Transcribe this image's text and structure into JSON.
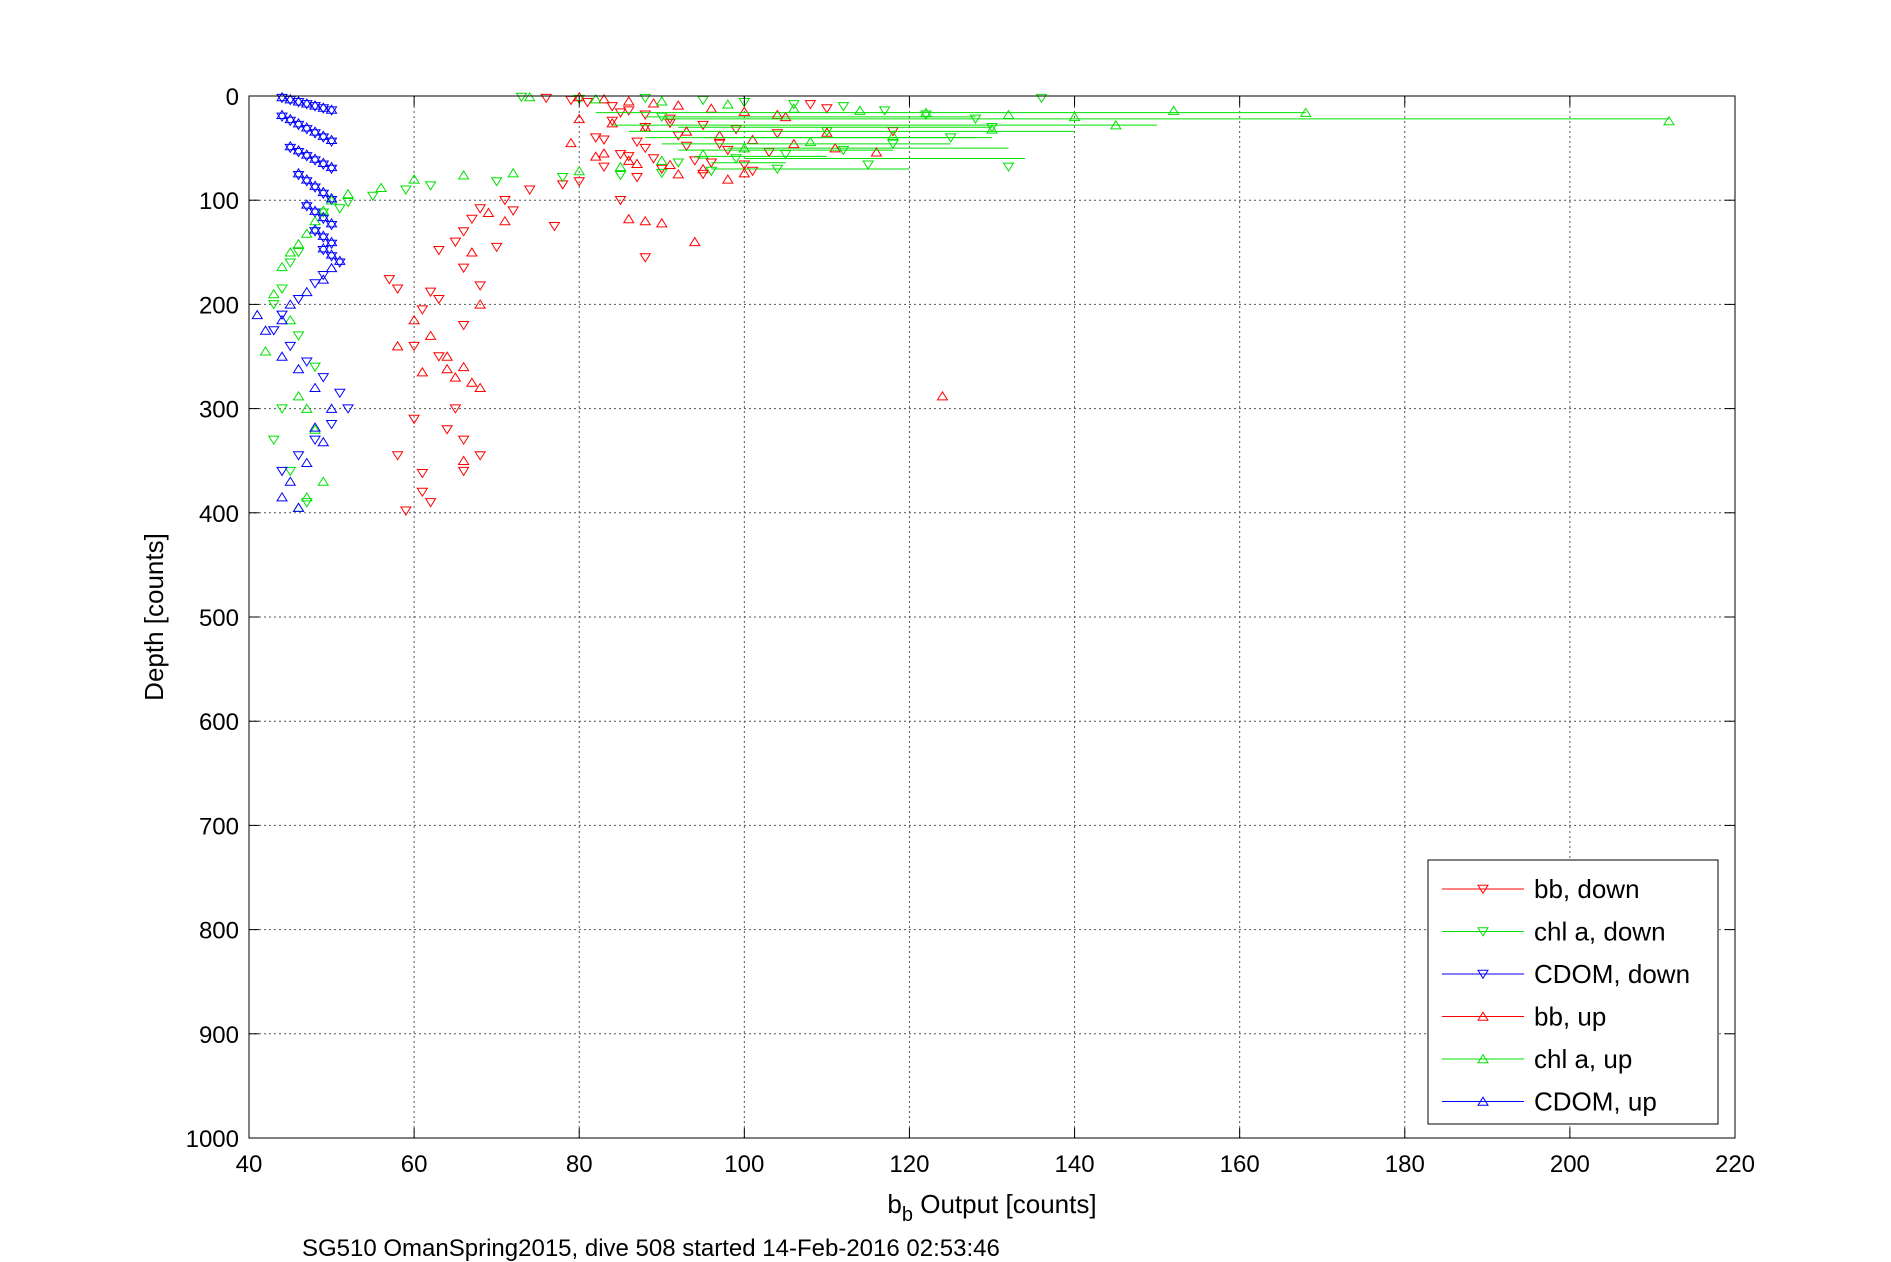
{
  "chart_data": {
    "type": "scatter",
    "title": "",
    "xlabel_main": "b",
    "xlabel_sub": "b",
    "xlabel_rest": " Output [counts]",
    "ylabel": "Depth [counts]",
    "caption": "SG510 OmanSpring2015, dive 508 started 14-Feb-2016 02:53:46",
    "xlim": [
      40,
      220
    ],
    "ylim": [
      0,
      1000
    ],
    "y_reversed": true,
    "grid": true,
    "xticks": [
      40,
      60,
      80,
      100,
      120,
      140,
      160,
      180,
      200,
      220
    ],
    "yticks": [
      0,
      100,
      200,
      300,
      400,
      500,
      600,
      700,
      800,
      900,
      1000
    ],
    "xtick_labels": [
      "40",
      "60",
      "80",
      "100",
      "120",
      "140",
      "160",
      "180",
      "200",
      "220"
    ],
    "ytick_labels": [
      "0",
      "100",
      "200",
      "300",
      "400",
      "500",
      "600",
      "700",
      "800",
      "900",
      "1000"
    ],
    "legend_position": "bottom-right",
    "series": [
      {
        "name": "bb, down",
        "color": "#ff0000",
        "marker": "triangle-down",
        "x": [
          76,
          79,
          81,
          84,
          86,
          88,
          91,
          95,
          99,
          104,
          82,
          87,
          93,
          98,
          85,
          89,
          96,
          83,
          90,
          101,
          110,
          84,
          88,
          92,
          97,
          103,
          86,
          94,
          100,
          108,
          85,
          91,
          118,
          83,
          88,
          95,
          87,
          80,
          78,
          74,
          71,
          68,
          67,
          66,
          65,
          63,
          66,
          58,
          57,
          62,
          61,
          60,
          63,
          65,
          64,
          66,
          68,
          66,
          61,
          62,
          59,
          58,
          61,
          60,
          63,
          66,
          68,
          70,
          72,
          77,
          85,
          88
        ],
        "y": [
          2,
          4,
          6,
          10,
          14,
          18,
          22,
          28,
          32,
          36,
          40,
          44,
          48,
          52,
          56,
          60,
          64,
          68,
          70,
          72,
          12,
          24,
          30,
          38,
          46,
          54,
          58,
          62,
          66,
          8,
          16,
          26,
          34,
          42,
          50,
          75,
          78,
          82,
          85,
          90,
          100,
          108,
          118,
          130,
          140,
          148,
          165,
          185,
          176,
          188,
          205,
          240,
          250,
          300,
          320,
          330,
          345,
          360,
          380,
          390,
          398,
          345,
          362,
          310,
          195,
          220,
          182,
          145,
          110,
          125,
          100,
          155
        ]
      },
      {
        "name": "chl a, down",
        "color": "#00e000",
        "marker": "triangle-down",
        "x": [
          73,
          80,
          88,
          95,
          100,
          106,
          112,
          117,
          122,
          128,
          136,
          90,
          110,
          130,
          125,
          118,
          112,
          105,
          99,
          92,
          115,
          132,
          104,
          96,
          90,
          85,
          78,
          70,
          62,
          59,
          55,
          52,
          51,
          49,
          48,
          46,
          45,
          44,
          43,
          46,
          48,
          44,
          43,
          45,
          47
        ],
        "y": [
          1,
          3,
          2,
          4,
          6,
          8,
          10,
          14,
          18,
          22,
          2,
          20,
          34,
          30,
          40,
          46,
          52,
          56,
          60,
          64,
          66,
          68,
          70,
          72,
          74,
          76,
          78,
          82,
          86,
          90,
          96,
          102,
          108,
          112,
          130,
          150,
          160,
          185,
          200,
          230,
          260,
          300,
          330,
          360,
          390
        ],
        "lines": [
          [
            88,
            20,
            128,
            20
          ],
          [
            92,
            30,
            130,
            30
          ],
          [
            95,
            40,
            128,
            40
          ],
          [
            98,
            50,
            132,
            50
          ],
          [
            100,
            60,
            134,
            60
          ],
          [
            96,
            70,
            120,
            70
          ]
        ]
      },
      {
        "name": "CDOM, down",
        "color": "#0000ff",
        "marker": "triangle-down",
        "x": [
          44,
          45,
          46,
          47,
          48,
          49,
          50,
          44,
          45,
          46,
          47,
          48,
          49,
          50,
          45,
          46,
          47,
          48,
          49,
          50,
          46,
          47,
          48,
          49,
          50,
          47,
          48,
          49,
          50,
          48,
          49,
          50,
          49,
          50,
          51,
          49,
          48,
          46,
          44,
          43,
          45,
          47,
          49,
          51,
          52,
          50,
          48,
          46,
          44
        ],
        "y": [
          2,
          4,
          6,
          8,
          10,
          12,
          14,
          20,
          24,
          28,
          32,
          36,
          40,
          44,
          50,
          54,
          58,
          62,
          66,
          70,
          76,
          82,
          88,
          94,
          100,
          106,
          112,
          118,
          124,
          130,
          136,
          142,
          148,
          154,
          160,
          172,
          180,
          195,
          210,
          225,
          240,
          255,
          270,
          285,
          300,
          315,
          330,
          345,
          360
        ]
      },
      {
        "name": "bb, up",
        "color": "#ff0000",
        "marker": "triangle-up",
        "x": [
          80,
          83,
          86,
          89,
          92,
          96,
          100,
          104,
          80,
          84,
          88,
          93,
          97,
          101,
          106,
          111,
          116,
          82,
          86,
          91,
          95,
          100,
          105,
          110,
          79,
          83,
          87,
          92,
          98,
          86,
          90,
          94,
          88,
          69,
          71,
          67,
          68,
          60,
          66,
          64,
          65,
          67,
          68,
          124,
          62,
          64,
          66,
          58,
          61
        ],
        "y": [
          1,
          3,
          5,
          7,
          9,
          12,
          15,
          18,
          22,
          26,
          30,
          34,
          38,
          42,
          46,
          50,
          54,
          58,
          62,
          66,
          70,
          74,
          20,
          35,
          45,
          55,
          65,
          75,
          80,
          118,
          122,
          140,
          120,
          112,
          120,
          150,
          200,
          215,
          260,
          262,
          270,
          275,
          280,
          288,
          230,
          250,
          350,
          240,
          265
        ]
      },
      {
        "name": "chl a, up",
        "color": "#00e000",
        "marker": "triangle-up",
        "x": [
          74,
          82,
          90,
          98,
          106,
          114,
          122,
          132,
          140,
          152,
          168,
          212,
          145,
          130,
          118,
          108,
          100,
          95,
          90,
          85,
          80,
          72,
          66,
          60,
          56,
          52,
          50,
          49,
          48,
          47,
          46,
          45,
          44,
          43,
          42,
          45,
          46,
          47,
          48,
          49,
          47,
          46
        ],
        "y": [
          1,
          3,
          5,
          8,
          12,
          14,
          16,
          18,
          20,
          14,
          16,
          24,
          28,
          32,
          38,
          44,
          50,
          56,
          62,
          68,
          72,
          74,
          76,
          80,
          88,
          94,
          100,
          110,
          120,
          132,
          142,
          150,
          164,
          190,
          245,
          215,
          288,
          300,
          320,
          370,
          385,
          395
        ],
        "lines": [
          [
            82,
            16,
            168,
            16
          ],
          [
            90,
            22,
            212,
            22
          ],
          [
            84,
            28,
            150,
            28
          ],
          [
            86,
            34,
            140,
            34
          ],
          [
            88,
            40,
            130,
            40
          ],
          [
            90,
            46,
            125,
            46
          ],
          [
            92,
            52,
            118,
            52
          ],
          [
            94,
            58,
            110,
            58
          ],
          [
            96,
            64,
            105,
            64
          ]
        ]
      },
      {
        "name": "CDOM, up",
        "color": "#0000ff",
        "marker": "triangle-up",
        "x": [
          44,
          45,
          46,
          47,
          48,
          49,
          50,
          44,
          45,
          46,
          47,
          48,
          49,
          50,
          45,
          46,
          47,
          48,
          49,
          50,
          46,
          47,
          48,
          49,
          50,
          47,
          48,
          49,
          50,
          48,
          49,
          50,
          49,
          50,
          51,
          50,
          49,
          47,
          45,
          44,
          41,
          42,
          44,
          46,
          48,
          50,
          48,
          49,
          47,
          45,
          44,
          46
        ],
        "y": [
          1,
          3,
          5,
          7,
          9,
          11,
          13,
          18,
          22,
          26,
          30,
          34,
          38,
          42,
          48,
          52,
          56,
          60,
          64,
          68,
          74,
          80,
          86,
          92,
          98,
          104,
          110,
          116,
          122,
          128,
          134,
          140,
          146,
          152,
          158,
          165,
          176,
          188,
          200,
          215,
          210,
          225,
          250,
          262,
          280,
          300,
          318,
          332,
          352,
          370,
          385,
          395
        ]
      }
    ]
  }
}
